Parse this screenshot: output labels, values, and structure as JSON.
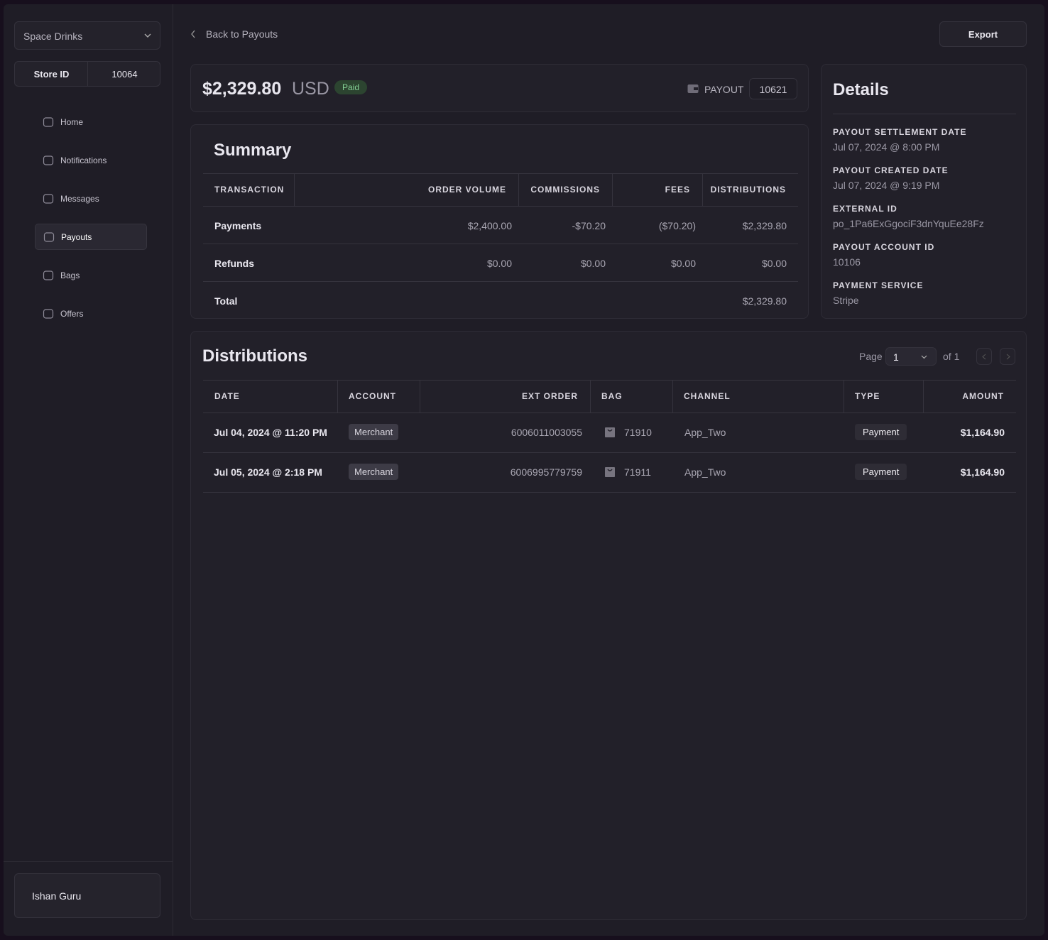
{
  "sidebar": {
    "store_selector": "Space Drinks",
    "store_id_label": "Store ID",
    "store_id": "10064",
    "nav": [
      "Home",
      "Notifications",
      "Messages",
      "Payouts",
      "Bags",
      "Offers"
    ],
    "user": "Ishan Guru"
  },
  "header": {
    "back": "Back to Payouts",
    "export": "Export"
  },
  "payout": {
    "amount": "$2,329.80",
    "currency": "USD",
    "status": "Paid",
    "payout_label": "PAYOUT",
    "payout_id": "10621"
  },
  "summary": {
    "title": "Summary",
    "columns": [
      "TRANSACTION",
      "ORDER VOLUME",
      "COMMISSIONS",
      "FEES",
      "DISTRIBUTIONS"
    ],
    "rows": [
      [
        "Payments",
        "$2,400.00",
        "-$70.20",
        "($70.20)",
        "$2,329.80"
      ],
      [
        "Refunds",
        "$0.00",
        "$0.00",
        "$0.00",
        "$0.00"
      ]
    ],
    "total": {
      "label": "Total",
      "value": "$2,329.80"
    }
  },
  "details": {
    "title": "Details",
    "fields": [
      {
        "label": "PAYOUT SETTLEMENT DATE",
        "value": "Jul 07, 2024 @ 8:00 PM"
      },
      {
        "label": "PAYOUT CREATED DATE",
        "value": "Jul 07, 2024 @ 9:19 PM"
      },
      {
        "label": "EXTERNAL ID",
        "value": "po_1Pa6ExGgociF3dnYquEe28Fz"
      },
      {
        "label": "PAYOUT ACCOUNT ID",
        "value": "10106"
      },
      {
        "label": "PAYMENT SERVICE",
        "value": "Stripe"
      }
    ]
  },
  "distributions": {
    "title": "Distributions",
    "pagination": {
      "page_label": "Page",
      "page": "1",
      "of": "of 1"
    },
    "columns": [
      "DATE",
      "ACCOUNT",
      "EXT ORDER",
      "BAG",
      "CHANNEL",
      "TYPE",
      "AMOUNT"
    ],
    "rows": [
      [
        "Jul 04, 2024 @ 11:20 PM",
        "Merchant",
        "6006011003055",
        "71910",
        "App_Two",
        "Payment",
        "$1,164.90"
      ],
      [
        "Jul 05, 2024 @ 2:18 PM",
        "Merchant",
        "6006995779759",
        "71911",
        "App_Two",
        "Payment",
        "$1,164.90"
      ]
    ]
  }
}
